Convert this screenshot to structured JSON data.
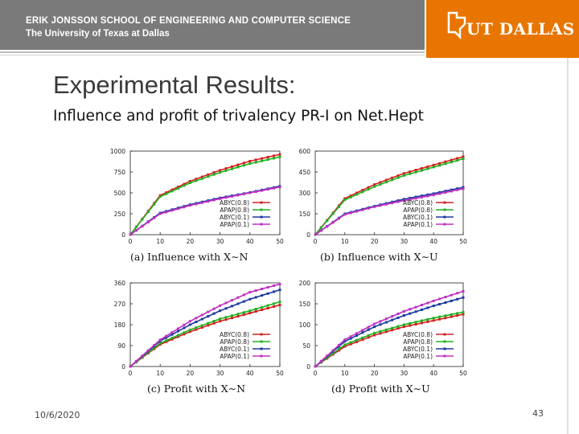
{
  "header": {
    "school": "ERIK JONSSON SCHOOL OF ENGINEERING AND COMPUTER SCIENCE",
    "university": "The University of Texas at Dallas",
    "logo_text": "UT DALLAS",
    "band_color": "#7a7a7a",
    "accent_color": "#e87500"
  },
  "slide": {
    "title": "Experimental Results:",
    "subtitle": "Influence and profit of trivalency PR-I on Net.Hept",
    "date": "10/6/2020",
    "page_number": "43"
  },
  "chart_data": [
    {
      "type": "line",
      "caption": "(a) Influence with X∼N",
      "x": [
        0,
        10,
        20,
        30,
        40,
        50
      ],
      "xlim": [
        0,
        50
      ],
      "ylim": [
        0,
        1000
      ],
      "yticks": [
        0,
        250,
        500,
        750,
        1000
      ],
      "xticks": [
        0,
        10,
        20,
        30,
        40,
        50
      ],
      "legend": "bottom-right",
      "series": [
        {
          "name": "ABYC(0.8)",
          "color": "#d42020",
          "values": [
            0,
            470,
            640,
            770,
            880,
            960
          ]
        },
        {
          "name": "APAP(0.8)",
          "color": "#20b020",
          "values": [
            0,
            455,
            620,
            745,
            850,
            930
          ]
        },
        {
          "name": "ABYC(0.1)",
          "color": "#1a3aa0",
          "values": [
            0,
            260,
            360,
            440,
            505,
            580
          ]
        },
        {
          "name": "APAP(0.1)",
          "color": "#c030c0",
          "values": [
            0,
            250,
            350,
            430,
            500,
            570
          ]
        }
      ]
    },
    {
      "type": "line",
      "caption": "(b) Influence with X∼U",
      "x": [
        0,
        10,
        20,
        30,
        40,
        50
      ],
      "xlim": [
        0,
        50
      ],
      "ylim": [
        0,
        600
      ],
      "yticks": [
        0,
        150,
        300,
        450,
        600
      ],
      "xticks": [
        0,
        10,
        20,
        30,
        40,
        50
      ],
      "legend": "bottom-right",
      "series": [
        {
          "name": "ABYC(0.8)",
          "color": "#d42020",
          "values": [
            0,
            260,
            360,
            440,
            500,
            560
          ]
        },
        {
          "name": "APAP(0.8)",
          "color": "#20b020",
          "values": [
            0,
            250,
            345,
            425,
            485,
            545
          ]
        },
        {
          "name": "ABYC(0.1)",
          "color": "#1a3aa0",
          "values": [
            0,
            150,
            205,
            255,
            295,
            340
          ]
        },
        {
          "name": "APAP(0.1)",
          "color": "#c030c0",
          "values": [
            0,
            145,
            200,
            245,
            285,
            330
          ]
        }
      ]
    },
    {
      "type": "line",
      "caption": "(c) Profit with X∼N",
      "x": [
        0,
        10,
        20,
        30,
        40,
        50
      ],
      "xlim": [
        0,
        50
      ],
      "ylim": [
        0,
        360
      ],
      "yticks": [
        0,
        90,
        180,
        270,
        360
      ],
      "ytick_labels": [
        "0",
        "90",
        "180",
        "270",
        "360"
      ],
      "xticks": [
        0,
        10,
        20,
        30,
        40,
        50
      ],
      "legend": "bottom-right",
      "series": [
        {
          "name": "ABYC(0.8)",
          "color": "#d42020",
          "values": [
            0,
            95,
            150,
            195,
            230,
            265
          ]
        },
        {
          "name": "APAP(0.8)",
          "color": "#20b020",
          "values": [
            0,
            100,
            158,
            205,
            240,
            278
          ]
        },
        {
          "name": "ABYC(0.1)",
          "color": "#1a3aa0",
          "values": [
            0,
            110,
            180,
            240,
            290,
            330
          ]
        },
        {
          "name": "APAP(0.1)",
          "color": "#c030c0",
          "values": [
            0,
            115,
            195,
            262,
            320,
            355
          ]
        }
      ]
    },
    {
      "type": "line",
      "caption": "(d) Profit with X∼U",
      "x": [
        0,
        10,
        20,
        30,
        40,
        50
      ],
      "xlim": [
        0,
        50
      ],
      "ylim": [
        0,
        200
      ],
      "yticks": [
        0,
        50,
        100,
        150,
        200
      ],
      "xticks": [
        0,
        10,
        20,
        30,
        40,
        50
      ],
      "legend": "bottom-right",
      "series": [
        {
          "name": "ABYC(0.8)",
          "color": "#d42020",
          "values": [
            0,
            48,
            75,
            95,
            110,
            125
          ]
        },
        {
          "name": "APAP(0.8)",
          "color": "#20b020",
          "values": [
            0,
            52,
            80,
            100,
            116,
            130
          ]
        },
        {
          "name": "ABYC(0.1)",
          "color": "#1a3aa0",
          "values": [
            0,
            60,
            95,
            122,
            145,
            165
          ]
        },
        {
          "name": "APAP(0.1)",
          "color": "#c030c0",
          "values": [
            0,
            64,
            102,
            132,
            157,
            180
          ]
        }
      ]
    }
  ]
}
